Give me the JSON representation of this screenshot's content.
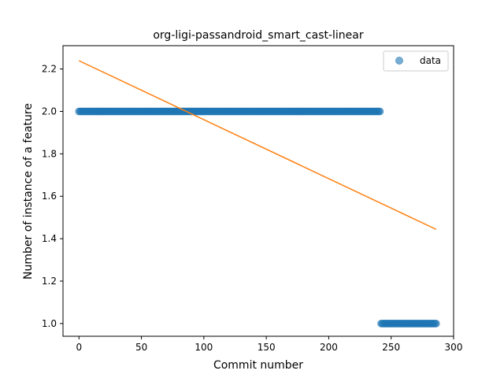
{
  "chart_data": {
    "type": "scatter",
    "title": "org-ligi-passandroid_smart_cast-linear",
    "xlabel": "Commit number",
    "ylabel": "Number of instance of a feature",
    "xlim": [
      -12.8,
      300
    ],
    "ylim": [
      0.94,
      2.31
    ],
    "x_ticks": [
      0,
      50,
      100,
      150,
      200,
      250,
      300
    ],
    "y_ticks": [
      1.0,
      1.2,
      1.4,
      1.6,
      1.8,
      2.0,
      2.2
    ],
    "x_tick_labels": [
      "0",
      "50",
      "100",
      "150",
      "200",
      "250",
      "300"
    ],
    "y_tick_labels": [
      "1.0",
      "1.2",
      "1.4",
      "1.6",
      "1.8",
      "2.0",
      "2.2"
    ],
    "grid": false,
    "legend": {
      "placement": "top-right",
      "entries": [
        "data"
      ]
    },
    "series": [
      {
        "name": "data",
        "kind": "scatter",
        "color": "#1f77b4",
        "segments": [
          {
            "x_start": 0,
            "x_end": 241,
            "y": 2.0
          },
          {
            "x_start": 242,
            "x_end": 286,
            "y": 1.0
          }
        ]
      },
      {
        "kind": "line",
        "color": "#ff7f0e",
        "x": [
          0,
          286
        ],
        "y": [
          2.239,
          1.444
        ]
      }
    ]
  }
}
